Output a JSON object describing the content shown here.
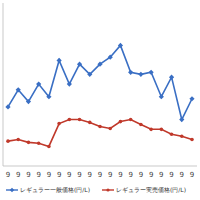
{
  "chart_data": {
    "type": "line",
    "categories": [
      "9",
      "9",
      "9",
      "9",
      "9",
      "9",
      "9",
      "9",
      "9",
      "9",
      "9",
      "9",
      "9",
      "9",
      "9",
      "9",
      "9",
      "9",
      "9"
    ],
    "series": [
      {
        "name": "レギュラー一般価格(円/L)",
        "color": "#3a6fc4",
        "marker": "diamond",
        "values": [
          144.5,
          148.7,
          145.8,
          150.1,
          147.0,
          155.9,
          150.1,
          155.0,
          152.5,
          155.0,
          156.7,
          159.6,
          153.0,
          152.5,
          153.0,
          147.0,
          151.8,
          141.4,
          146.5
        ]
      },
      {
        "name": "レギュラー実売価格(円/L)",
        "color": "#c0392b",
        "marker": "circle",
        "values": [
          136.1,
          136.5,
          135.8,
          135.6,
          134.8,
          140.4,
          141.4,
          141.4,
          140.7,
          139.7,
          139.2,
          140.9,
          141.4,
          140.2,
          139.0,
          139.0,
          137.8,
          137.3,
          136.5
        ]
      }
    ],
    "ylim": [
      130,
      170
    ],
    "tick_labels": "x",
    "grid": false,
    "legend": "bottom"
  }
}
